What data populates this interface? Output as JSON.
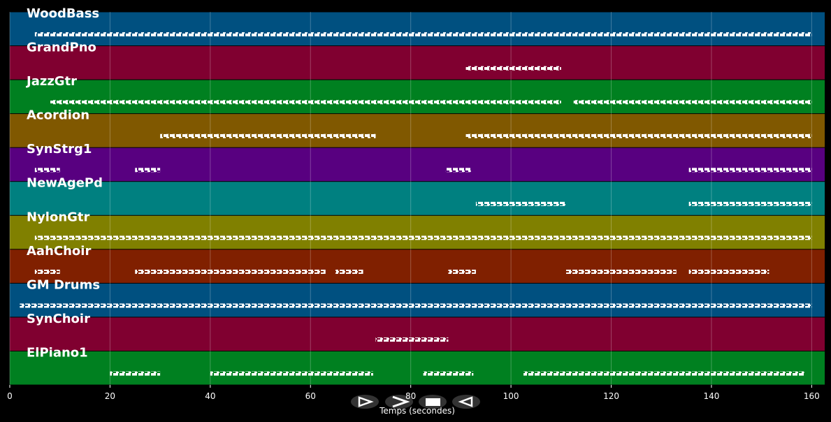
{
  "chart_data": {
    "type": "piano_roll",
    "x_label": "Temps (secondes)",
    "xlim": [
      0,
      162.6
    ],
    "xticks": [
      0,
      20,
      40,
      60,
      80,
      100,
      120,
      140,
      160
    ],
    "grid": true,
    "series": [
      {
        "name": "WoodBass",
        "color": "#005080",
        "segments": [
          [
            5,
            160
          ]
        ]
      },
      {
        "name": "GrandPno",
        "color": "#800030",
        "segments": [
          [
            91,
            110
          ]
        ]
      },
      {
        "name": "JazzGtr",
        "color": "#008020",
        "segments": [
          [
            8,
            110
          ],
          [
            112.5,
            160
          ]
        ]
      },
      {
        "name": "Acordion",
        "color": "#805800",
        "segments": [
          [
            30,
            73
          ],
          [
            91,
            160
          ]
        ]
      },
      {
        "name": "SynStrg1",
        "color": "#580080",
        "segments": [
          [
            5,
            10
          ],
          [
            25,
            30
          ],
          [
            87,
            92
          ],
          [
            135.5,
            160
          ]
        ]
      },
      {
        "name": "NewAgePd",
        "color": "#008080",
        "segments": [
          [
            93,
            111
          ],
          [
            135.5,
            160
          ]
        ]
      },
      {
        "name": "NylonGtr",
        "color": "#808000",
        "segments": [
          [
            5,
            160
          ]
        ]
      },
      {
        "name": "AahChoir",
        "color": "#802000",
        "segments": [
          [
            5,
            10
          ],
          [
            25,
            63
          ],
          [
            65,
            70.5
          ],
          [
            87.5,
            93
          ],
          [
            111,
            133
          ],
          [
            135.5,
            151.5
          ]
        ]
      },
      {
        "name": "GM Drums",
        "color": "#005080",
        "segments": [
          [
            2,
            160
          ]
        ]
      },
      {
        "name": "SynChoir",
        "color": "#800030",
        "segments": [
          [
            73,
            87.5
          ]
        ]
      },
      {
        "name": "ElPiano1",
        "color": "#008020",
        "segments": [
          [
            20,
            30
          ],
          [
            40,
            72.5
          ],
          [
            82.5,
            92.5
          ],
          [
            102.5,
            158.5
          ]
        ]
      }
    ]
  }
}
